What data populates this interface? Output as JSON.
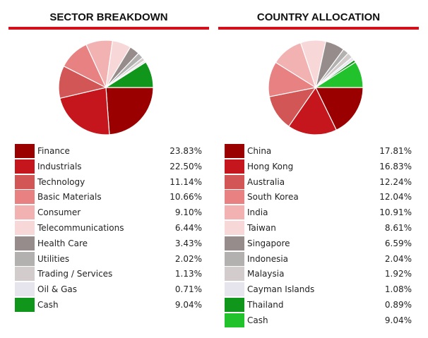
{
  "chart_data": [
    {
      "type": "pie",
      "title": "SECTOR BREAKDOWN",
      "categories": [
        "Finance",
        "Industrials",
        "Technology",
        "Basic Materials",
        "Consumer",
        "Telecommunications",
        "Health Care",
        "Utilities",
        "Trading / Services",
        "Oil & Gas",
        "Cash"
      ],
      "values": [
        23.83,
        22.5,
        11.14,
        10.66,
        9.1,
        6.44,
        3.43,
        2.02,
        1.13,
        0.71,
        9.04
      ],
      "value_labels": [
        "23.83%",
        "22.50%",
        "11.14%",
        "10.66%",
        "9.10%",
        "6.44%",
        "3.43%",
        "2.02%",
        "1.13%",
        "0.71%",
        "9.04%"
      ],
      "colors": [
        "#9b0000",
        "#c4161c",
        "#d35656",
        "#e88282",
        "#f2b2b2",
        "#f7d7d7",
        "#968c8c",
        "#b3b0b0",
        "#d2cccc",
        "#e6e4ec",
        "#10961a"
      ],
      "legend": "below"
    },
    {
      "type": "pie",
      "title": "COUNTRY ALLOCATION",
      "categories": [
        "China",
        "Hong Kong",
        "Australia",
        "South Korea",
        "India",
        "Taiwan",
        "Singapore",
        "Indonesia",
        "Malaysia",
        "Cayman Islands",
        "Thailand",
        "Cash"
      ],
      "values": [
        17.81,
        16.83,
        12.24,
        12.04,
        10.91,
        8.61,
        6.59,
        2.04,
        1.92,
        1.08,
        0.89,
        9.04
      ],
      "value_labels": [
        "17.81%",
        "16.83%",
        "12.24%",
        "12.04%",
        "10.91%",
        "8.61%",
        "6.59%",
        "2.04%",
        "1.92%",
        "1.08%",
        "0.89%",
        "9.04%"
      ],
      "colors": [
        "#9b0000",
        "#c4161c",
        "#d35656",
        "#e88282",
        "#f2b2b2",
        "#f7d7d7",
        "#968c8c",
        "#b3b0b0",
        "#d2cccc",
        "#e6e4ec",
        "#10961a",
        "#22c22c"
      ],
      "legend": "below"
    }
  ]
}
